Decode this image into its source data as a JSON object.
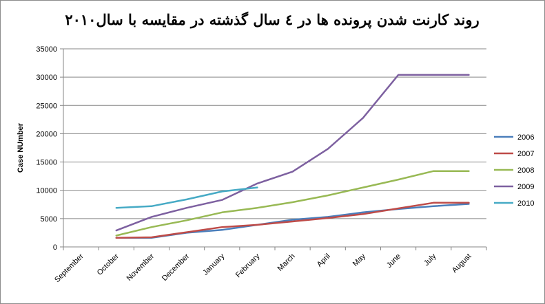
{
  "chart_data": {
    "type": "line",
    "title": "روند کارنت شدن پرونده ها در ٤ سال گذشته در مقایسه با سال٢٠١٠",
    "xlabel": "",
    "ylabel": "Case NUmber",
    "ylim": [
      0,
      35000
    ],
    "yticks": [
      "0",
      "5000",
      "10000",
      "15000",
      "20000",
      "25000",
      "30000",
      "35000"
    ],
    "grid": true,
    "legend_position": "right",
    "categories": [
      "September",
      "October",
      "November",
      "December",
      "January",
      "February",
      "March",
      "April",
      "May",
      "June",
      "July",
      "August"
    ],
    "series": [
      {
        "name": "2006",
        "color": "#4a7ebb",
        "values": [
          null,
          1600,
          1600,
          2500,
          3000,
          3900,
          4800,
          5300,
          6100,
          6700,
          7200,
          7600
        ]
      },
      {
        "name": "2007",
        "color": "#be4b48",
        "values": [
          null,
          1600,
          1700,
          2600,
          3500,
          3900,
          4500,
          5100,
          5800,
          6800,
          7800,
          7800
        ]
      },
      {
        "name": "2008",
        "color": "#98b954",
        "values": [
          null,
          2000,
          3500,
          4700,
          6100,
          6900,
          7900,
          9100,
          10500,
          11900,
          13400,
          13400
        ]
      },
      {
        "name": "2009",
        "color": "#7d60a0",
        "values": [
          null,
          2900,
          5300,
          6900,
          8300,
          11200,
          13300,
          17300,
          22800,
          30400,
          30400,
          30400
        ]
      },
      {
        "name": "2010",
        "color": "#46aac5",
        "values": [
          null,
          6900,
          7200,
          8400,
          9800,
          10500,
          null,
          null,
          null,
          null,
          null,
          null
        ]
      }
    ]
  }
}
